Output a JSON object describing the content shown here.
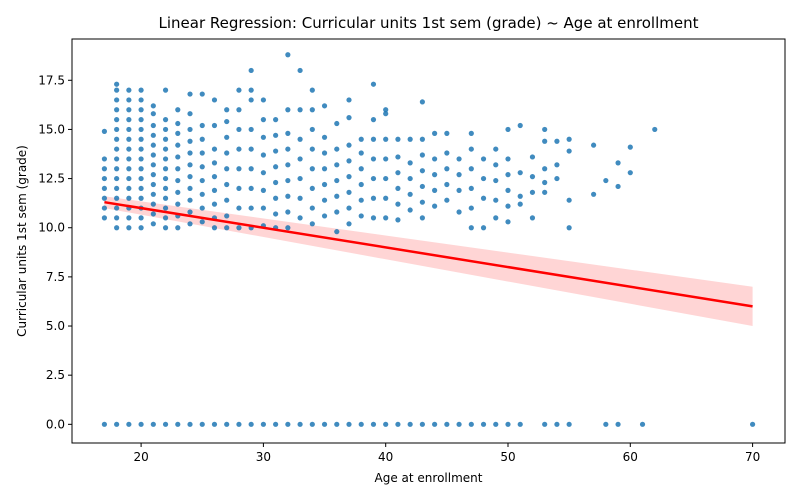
{
  "chart_data": {
    "type": "scatter",
    "title": "Linear Regression: Curricular units 1st sem (grade) ~ Age at enrollment",
    "xlabel": "Age at enrollment",
    "ylabel": "Curricular units 1st sem (grade)",
    "xlim": [
      14.35,
      72.65
    ],
    "ylim": [
      -0.95,
      19.6
    ],
    "xticks": [
      20,
      30,
      40,
      50,
      60,
      70
    ],
    "yticks": [
      0.0,
      2.5,
      5.0,
      7.5,
      10.0,
      12.5,
      15.0,
      17.5
    ],
    "ytick_labels": [
      "0.0",
      "2.5",
      "5.0",
      "7.5",
      "10.0",
      "12.5",
      "15.0",
      "17.5"
    ],
    "grid": false,
    "colors": {
      "points": "#1f77b4",
      "line": "#ff0000",
      "band": "#ffb3b3"
    },
    "regression": {
      "x": [
        17,
        70
      ],
      "y": [
        11.3,
        6.0
      ],
      "ci_low": [
        11.0,
        5.0
      ],
      "ci_high": [
        11.6,
        7.0
      ]
    },
    "zero_x": [
      17,
      18,
      19,
      20,
      21,
      22,
      23,
      24,
      25,
      26,
      27,
      28,
      29,
      30,
      31,
      32,
      33,
      34,
      35,
      36,
      37,
      38,
      39,
      40,
      41,
      42,
      43,
      44,
      45,
      46,
      47,
      48,
      49,
      50,
      51,
      53,
      54,
      55,
      58,
      59,
      61,
      70
    ],
    "points": [
      [
        17,
        14.9
      ],
      [
        17,
        13.5
      ],
      [
        17,
        13.0
      ],
      [
        17,
        12.5
      ],
      [
        17,
        12.0
      ],
      [
        17,
        11.5
      ],
      [
        17,
        11.0
      ],
      [
        17,
        10.5
      ],
      [
        18,
        17.3
      ],
      [
        18,
        17.0
      ],
      [
        18,
        16.5
      ],
      [
        18,
        16.0
      ],
      [
        18,
        15.5
      ],
      [
        18,
        15.0
      ],
      [
        18,
        14.5
      ],
      [
        18,
        14.0
      ],
      [
        18,
        13.5
      ],
      [
        18,
        13.0
      ],
      [
        18,
        12.5
      ],
      [
        18,
        12.0
      ],
      [
        18,
        11.5
      ],
      [
        18,
        11.0
      ],
      [
        18,
        10.5
      ],
      [
        18,
        10.0
      ],
      [
        19,
        17.0
      ],
      [
        19,
        16.5
      ],
      [
        19,
        16.0
      ],
      [
        19,
        15.5
      ],
      [
        19,
        15.0
      ],
      [
        19,
        14.5
      ],
      [
        19,
        14.0
      ],
      [
        19,
        13.5
      ],
      [
        19,
        13.0
      ],
      [
        19,
        12.5
      ],
      [
        19,
        12.0
      ],
      [
        19,
        11.5
      ],
      [
        19,
        11.0
      ],
      [
        19,
        10.5
      ],
      [
        19,
        10.0
      ],
      [
        20,
        17.0
      ],
      [
        20,
        16.5
      ],
      [
        20,
        16.0
      ],
      [
        20,
        15.5
      ],
      [
        20,
        15.0
      ],
      [
        20,
        14.5
      ],
      [
        20,
        14.0
      ],
      [
        20,
        13.5
      ],
      [
        20,
        13.0
      ],
      [
        20,
        12.5
      ],
      [
        20,
        12.0
      ],
      [
        20,
        11.5
      ],
      [
        20,
        11.0
      ],
      [
        20,
        10.5
      ],
      [
        20,
        10.0
      ],
      [
        21,
        16.2
      ],
      [
        21,
        15.8
      ],
      [
        21,
        15.2
      ],
      [
        21,
        14.7
      ],
      [
        21,
        14.2
      ],
      [
        21,
        13.7
      ],
      [
        21,
        13.2
      ],
      [
        21,
        12.7
      ],
      [
        21,
        12.2
      ],
      [
        21,
        11.7
      ],
      [
        21,
        11.2
      ],
      [
        21,
        10.7
      ],
      [
        21,
        10.2
      ],
      [
        22,
        17.0
      ],
      [
        22,
        15.5
      ],
      [
        22,
        15.0
      ],
      [
        22,
        14.5
      ],
      [
        22,
        14.0
      ],
      [
        22,
        13.5
      ],
      [
        22,
        13.0
      ],
      [
        22,
        12.5
      ],
      [
        22,
        12.0
      ],
      [
        22,
        11.5
      ],
      [
        22,
        11.0
      ],
      [
        22,
        10.5
      ],
      [
        22,
        10.0
      ],
      [
        23,
        16.0
      ],
      [
        23,
        15.3
      ],
      [
        23,
        14.8
      ],
      [
        23,
        14.2
      ],
      [
        23,
        13.6
      ],
      [
        23,
        13.0
      ],
      [
        23,
        12.4
      ],
      [
        23,
        11.8
      ],
      [
        23,
        11.2
      ],
      [
        23,
        10.6
      ],
      [
        23,
        10.0
      ],
      [
        24,
        16.8
      ],
      [
        24,
        15.8
      ],
      [
        24,
        15.0
      ],
      [
        24,
        14.4
      ],
      [
        24,
        13.8
      ],
      [
        24,
        13.2
      ],
      [
        24,
        12.6
      ],
      [
        24,
        12.0
      ],
      [
        24,
        11.4
      ],
      [
        24,
        10.8
      ],
      [
        24,
        10.2
      ],
      [
        25,
        16.8
      ],
      [
        25,
        15.2
      ],
      [
        25,
        14.5
      ],
      [
        25,
        13.8
      ],
      [
        25,
        13.1
      ],
      [
        25,
        12.4
      ],
      [
        25,
        11.7
      ],
      [
        25,
        11.0
      ],
      [
        25,
        10.3
      ],
      [
        26,
        16.5
      ],
      [
        26,
        15.2
      ],
      [
        26,
        14.0
      ],
      [
        26,
        13.3
      ],
      [
        26,
        12.6
      ],
      [
        26,
        11.9
      ],
      [
        26,
        11.2
      ],
      [
        26,
        10.5
      ],
      [
        26,
        10.0
      ],
      [
        27,
        16.0
      ],
      [
        27,
        15.4
      ],
      [
        27,
        14.6
      ],
      [
        27,
        13.8
      ],
      [
        27,
        13.0
      ],
      [
        27,
        12.2
      ],
      [
        27,
        11.4
      ],
      [
        27,
        10.6
      ],
      [
        27,
        10.0
      ],
      [
        28,
        17.0
      ],
      [
        28,
        16.0
      ],
      [
        28,
        15.0
      ],
      [
        28,
        14.0
      ],
      [
        28,
        13.0
      ],
      [
        28,
        12.0
      ],
      [
        28,
        11.0
      ],
      [
        28,
        10.0
      ],
      [
        29,
        18.0
      ],
      [
        29,
        17.0
      ],
      [
        29,
        16.5
      ],
      [
        29,
        15.0
      ],
      [
        29,
        14.0
      ],
      [
        29,
        13.0
      ],
      [
        29,
        12.0
      ],
      [
        29,
        11.0
      ],
      [
        29,
        10.0
      ],
      [
        30,
        16.5
      ],
      [
        30,
        15.5
      ],
      [
        30,
        14.6
      ],
      [
        30,
        13.7
      ],
      [
        30,
        12.8
      ],
      [
        30,
        11.9
      ],
      [
        30,
        11.0
      ],
      [
        30,
        10.1
      ],
      [
        31,
        15.5
      ],
      [
        31,
        14.7
      ],
      [
        31,
        13.9
      ],
      [
        31,
        13.1
      ],
      [
        31,
        12.3
      ],
      [
        31,
        11.5
      ],
      [
        31,
        10.7
      ],
      [
        31,
        10.0
      ],
      [
        32,
        18.8
      ],
      [
        32,
        16.0
      ],
      [
        32,
        14.8
      ],
      [
        32,
        14.0
      ],
      [
        32,
        13.2
      ],
      [
        32,
        12.4
      ],
      [
        32,
        11.6
      ],
      [
        32,
        10.8
      ],
      [
        32,
        10.0
      ],
      [
        33,
        18.0
      ],
      [
        33,
        16.0
      ],
      [
        33,
        14.5
      ],
      [
        33,
        13.5
      ],
      [
        33,
        12.5
      ],
      [
        33,
        11.5
      ],
      [
        33,
        10.5
      ],
      [
        34,
        17.0
      ],
      [
        34,
        16.0
      ],
      [
        34,
        15.0
      ],
      [
        34,
        14.0
      ],
      [
        34,
        13.0
      ],
      [
        34,
        12.0
      ],
      [
        34,
        11.0
      ],
      [
        34,
        10.2
      ],
      [
        35,
        16.2
      ],
      [
        35,
        14.6
      ],
      [
        35,
        13.8
      ],
      [
        35,
        13.0
      ],
      [
        35,
        12.2
      ],
      [
        35,
        11.4
      ],
      [
        35,
        10.6
      ],
      [
        36,
        15.3
      ],
      [
        36,
        14.0
      ],
      [
        36,
        13.2
      ],
      [
        36,
        12.4
      ],
      [
        36,
        11.6
      ],
      [
        36,
        10.8
      ],
      [
        36,
        9.8
      ],
      [
        37,
        16.5
      ],
      [
        37,
        15.6
      ],
      [
        37,
        14.2
      ],
      [
        37,
        13.4
      ],
      [
        37,
        12.6
      ],
      [
        37,
        11.8
      ],
      [
        37,
        11.0
      ],
      [
        37,
        10.2
      ],
      [
        38,
        14.5
      ],
      [
        38,
        13.8
      ],
      [
        38,
        13.0
      ],
      [
        38,
        12.2
      ],
      [
        38,
        11.4
      ],
      [
        38,
        10.6
      ],
      [
        39,
        17.3
      ],
      [
        39,
        15.5
      ],
      [
        39,
        14.5
      ],
      [
        39,
        13.5
      ],
      [
        39,
        12.5
      ],
      [
        39,
        11.5
      ],
      [
        39,
        10.5
      ],
      [
        40,
        16.0
      ],
      [
        40,
        15.8
      ],
      [
        40,
        14.5
      ],
      [
        40,
        13.5
      ],
      [
        40,
        12.5
      ],
      [
        40,
        11.5
      ],
      [
        40,
        10.5
      ],
      [
        41,
        14.5
      ],
      [
        41,
        13.6
      ],
      [
        41,
        12.8
      ],
      [
        41,
        12.0
      ],
      [
        41,
        11.2
      ],
      [
        41,
        10.4
      ],
      [
        42,
        14.5
      ],
      [
        42,
        13.3
      ],
      [
        42,
        12.5
      ],
      [
        42,
        11.7
      ],
      [
        42,
        10.9
      ],
      [
        43,
        16.4
      ],
      [
        43,
        14.5
      ],
      [
        43,
        13.7
      ],
      [
        43,
        12.9
      ],
      [
        43,
        12.1
      ],
      [
        43,
        11.3
      ],
      [
        43,
        10.5
      ],
      [
        44,
        14.8
      ],
      [
        44,
        13.5
      ],
      [
        44,
        12.7
      ],
      [
        44,
        11.9
      ],
      [
        44,
        11.1
      ],
      [
        45,
        14.8
      ],
      [
        45,
        13.8
      ],
      [
        45,
        13.0
      ],
      [
        45,
        12.2
      ],
      [
        45,
        11.4
      ],
      [
        46,
        13.5
      ],
      [
        46,
        12.7
      ],
      [
        46,
        11.9
      ],
      [
        46,
        10.8
      ],
      [
        47,
        14.8
      ],
      [
        47,
        14.0
      ],
      [
        47,
        13.0
      ],
      [
        47,
        12.0
      ],
      [
        47,
        11.0
      ],
      [
        47,
        10.0
      ],
      [
        48,
        13.5
      ],
      [
        48,
        12.5
      ],
      [
        48,
        11.5
      ],
      [
        48,
        10.0
      ],
      [
        49,
        14.0
      ],
      [
        49,
        13.2
      ],
      [
        49,
        12.4
      ],
      [
        49,
        11.4
      ],
      [
        49,
        10.5
      ],
      [
        50,
        15.0
      ],
      [
        50,
        13.5
      ],
      [
        50,
        12.7
      ],
      [
        50,
        11.9
      ],
      [
        50,
        11.1
      ],
      [
        50,
        10.3
      ],
      [
        51,
        15.2
      ],
      [
        51,
        12.8
      ],
      [
        51,
        11.6
      ],
      [
        51,
        11.2
      ],
      [
        52,
        13.6
      ],
      [
        52,
        12.6
      ],
      [
        52,
        11.8
      ],
      [
        52,
        10.5
      ],
      [
        53,
        15.0
      ],
      [
        53,
        14.4
      ],
      [
        53,
        13.0
      ],
      [
        53,
        12.3
      ],
      [
        53,
        11.8
      ],
      [
        54,
        14.4
      ],
      [
        54,
        13.2
      ],
      [
        54,
        12.5
      ],
      [
        55,
        14.5
      ],
      [
        55,
        13.9
      ],
      [
        55,
        11.4
      ],
      [
        55,
        10.0
      ],
      [
        57,
        14.2
      ],
      [
        57,
        11.7
      ],
      [
        58,
        12.4
      ],
      [
        59,
        13.3
      ],
      [
        59,
        12.1
      ],
      [
        60,
        14.1
      ],
      [
        60,
        12.8
      ],
      [
        62,
        15.0
      ]
    ]
  }
}
